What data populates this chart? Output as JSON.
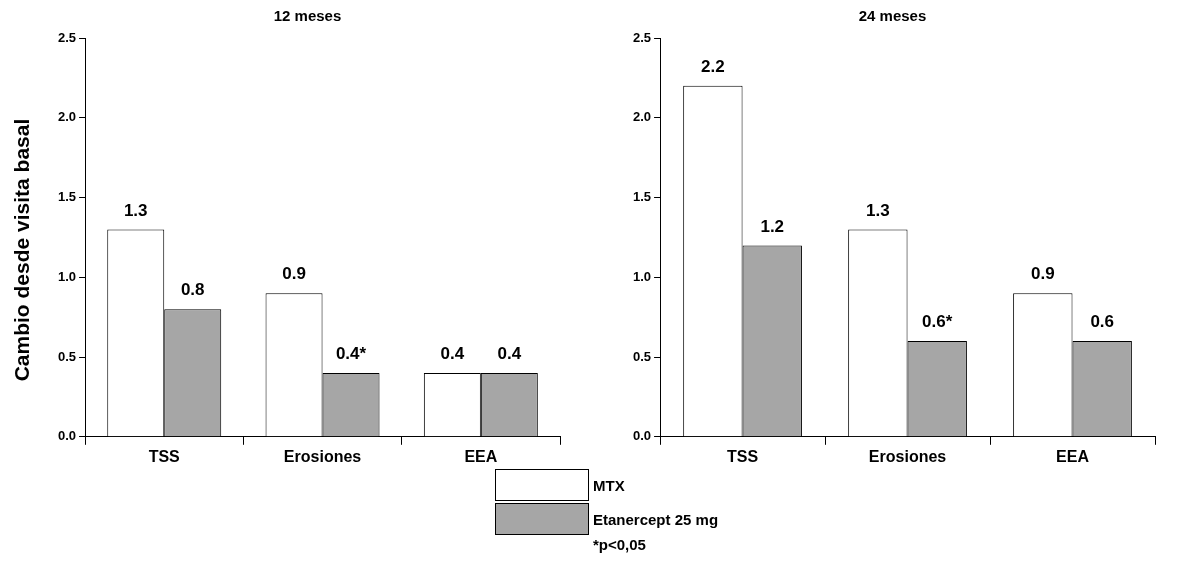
{
  "chart_data": [
    {
      "type": "bar",
      "title": "12 meses",
      "ylabel": "Cambio desde visita basal",
      "categories": [
        "TSS",
        "Erosiones",
        "EEA"
      ],
      "series": [
        {
          "name": "MTX",
          "color": "#ffffff",
          "values": [
            1.3,
            0.9,
            0.4
          ],
          "value_labels": [
            "1.3",
            "0.9",
            "0.4"
          ]
        },
        {
          "name": "Etanercept 25 mg",
          "color": "#a6a6a6",
          "values": [
            0.8,
            0.4,
            0.4
          ],
          "value_labels": [
            "0.8",
            "0.4*",
            "0.4"
          ]
        }
      ],
      "ylim": [
        0,
        2.5
      ],
      "yticks": [
        {
          "value": 0,
          "label": "0.0"
        },
        0.5,
        {
          "value": 1,
          "label": "1.0"
        },
        1.5,
        {
          "value": 2,
          "label": "2.0"
        },
        2.5
      ],
      "grid": false,
      "legend": "bottom",
      "annotations": [
        "*p<0,05"
      ]
    },
    {
      "type": "bar",
      "title": "24 meses",
      "categories": [
        "TSS",
        "Erosiones",
        "EEA"
      ],
      "series": [
        {
          "color": "#ffffff",
          "values": [
            2.2,
            1.3,
            0.9
          ],
          "value_labels": [
            "2.2",
            "1.3",
            "0.9"
          ]
        },
        {
          "color": "#a6a6a6",
          "values": [
            1.2,
            0.6,
            0.6
          ],
          "value_labels": [
            "1.2",
            "0.6*",
            "0.6"
          ]
        }
      ],
      "ylim": [
        0,
        2.5
      ],
      "yticks": [
        {
          "value": 0,
          "label": "0.0"
        },
        0.5,
        {
          "value": 1,
          "label": "1.0"
        },
        1.5,
        {
          "value": 2,
          "label": "2.0"
        },
        2.5
      ],
      "grid": false
    }
  ]
}
